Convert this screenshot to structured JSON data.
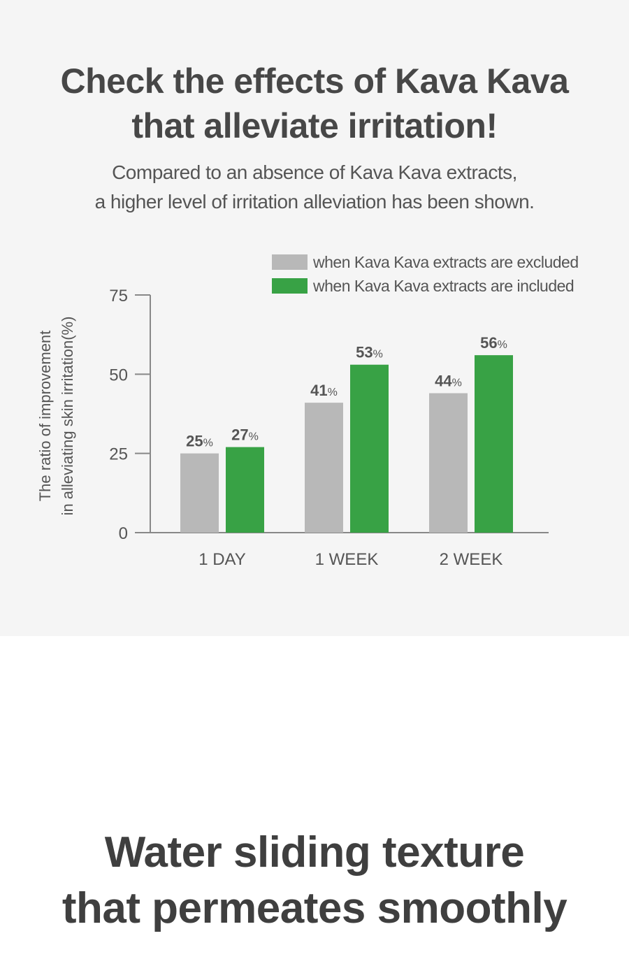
{
  "header": {
    "title_line1": "Check the effects of Kava Kava",
    "title_line2": "that alleviate irritation!",
    "subtitle_line1": "Compared to an absence of Kava Kava extracts,",
    "subtitle_line2": "a higher level of irritation alleviation has been shown."
  },
  "chart_data": {
    "type": "bar",
    "categories": [
      "1 DAY",
      "1 WEEK",
      "2 WEEK"
    ],
    "series": [
      {
        "name": "when Kava Kava extracts are excluded",
        "values": [
          25,
          41,
          44
        ],
        "color": "#b8b8b8"
      },
      {
        "name": "when Kava Kava extracts are included",
        "values": [
          27,
          53,
          56
        ],
        "color": "#38a245"
      }
    ],
    "value_suffix": "%",
    "ylabel_line1": "The ratio of improvement",
    "ylabel_line2": "in alleviating skin irritation(%)",
    "yticks": [
      0,
      25,
      50,
      75
    ],
    "ylim": [
      0,
      75
    ],
    "legend_position": "top-right",
    "grid": false
  },
  "footer": {
    "title_line1": "Water sliding texture",
    "title_line2": "that permeates smoothly"
  }
}
